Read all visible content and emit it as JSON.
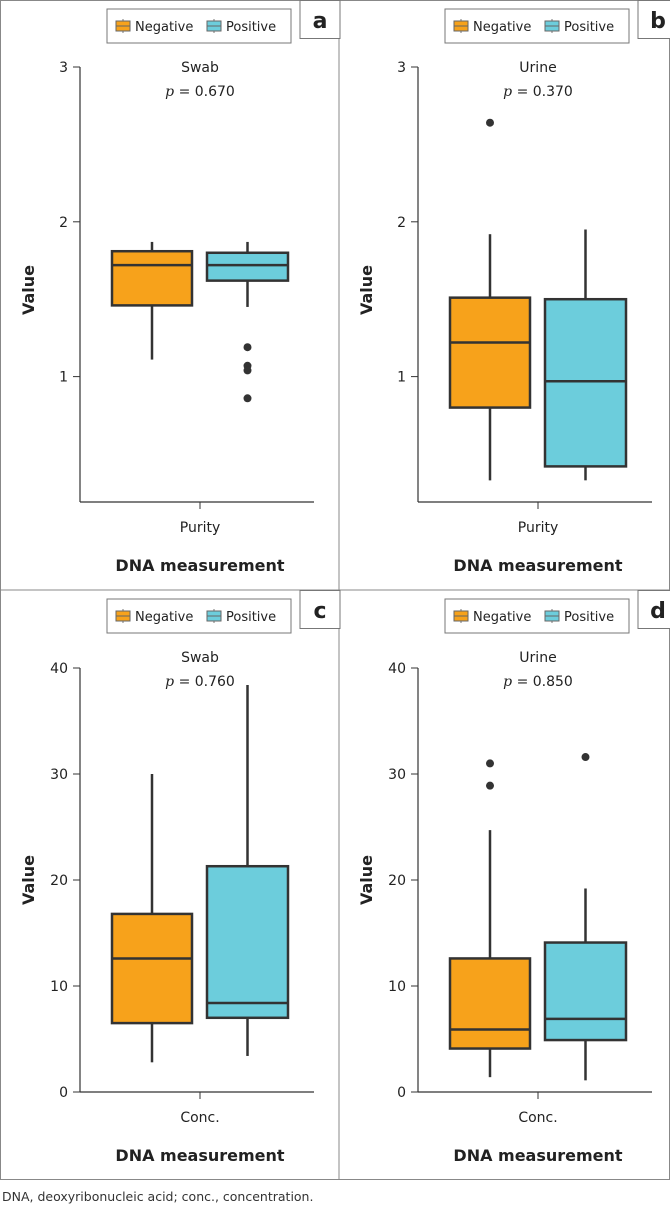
{
  "colors": {
    "negative": "#F7A21B",
    "positive": "#6CCDDC",
    "stroke": "#333333"
  },
  "legend": {
    "negative": "Negative",
    "positive": "Positive"
  },
  "caption": "DNA, deoxyribonucleic acid; conc., concentration.",
  "chart_data": [
    {
      "panel": "a",
      "type": "box",
      "title": "Swab",
      "p_label": "p",
      "p_value": "= 0.670",
      "ylabel": "Value",
      "xlabel": "DNA measurement",
      "category": "Purity",
      "yticks": [
        1,
        2,
        3
      ],
      "ylim": [
        0.19,
        3
      ],
      "series": [
        {
          "name": "Negative",
          "min": 1.11,
          "q1": 1.46,
          "median": 1.72,
          "q3": 1.81,
          "max": 1.87,
          "outliers": []
        },
        {
          "name": "Positive",
          "min": 1.45,
          "q1": 1.62,
          "median": 1.72,
          "q3": 1.8,
          "max": 1.87,
          "outliers": [
            1.19,
            1.07,
            1.04,
            0.86
          ]
        }
      ]
    },
    {
      "panel": "b",
      "type": "box",
      "title": "Urine",
      "p_label": "p",
      "p_value": "= 0.370",
      "ylabel": "Value",
      "xlabel": "DNA measurement",
      "category": "Purity",
      "yticks": [
        1,
        2,
        3
      ],
      "ylim": [
        0.19,
        3
      ],
      "series": [
        {
          "name": "Negative",
          "min": 0.33,
          "q1": 0.8,
          "median": 1.22,
          "q3": 1.51,
          "max": 1.92,
          "outliers": [
            2.64
          ]
        },
        {
          "name": "Positive",
          "min": 0.33,
          "q1": 0.42,
          "median": 0.97,
          "q3": 1.5,
          "max": 1.95,
          "outliers": []
        }
      ]
    },
    {
      "panel": "c",
      "type": "box",
      "title": "Swab",
      "p_label": "p",
      "p_value": "= 0.760",
      "ylabel": "Value",
      "xlabel": "DNA measurement",
      "category": "Conc.",
      "yticks": [
        0,
        10,
        20,
        30,
        40
      ],
      "ylim": [
        0,
        40
      ],
      "series": [
        {
          "name": "Negative",
          "min": 2.8,
          "q1": 6.5,
          "median": 12.6,
          "q3": 16.8,
          "max": 30.0,
          "outliers": []
        },
        {
          "name": "Positive",
          "min": 3.4,
          "q1": 7.0,
          "median": 8.4,
          "q3": 21.3,
          "max": 38.4,
          "outliers": []
        }
      ]
    },
    {
      "panel": "d",
      "type": "box",
      "title": "Urine",
      "p_label": "p",
      "p_value": "= 0.850",
      "ylabel": "Value",
      "xlabel": "DNA measurement",
      "category": "Conc.",
      "yticks": [
        0,
        10,
        20,
        30,
        40
      ],
      "ylim": [
        0,
        40
      ],
      "series": [
        {
          "name": "Negative",
          "min": 1.4,
          "q1": 4.1,
          "median": 5.9,
          "q3": 12.6,
          "max": 24.7,
          "outliers": [
            31.0,
            28.9
          ]
        },
        {
          "name": "Positive",
          "min": 1.1,
          "q1": 4.9,
          "median": 6.9,
          "q3": 14.1,
          "max": 19.2,
          "outliers": [
            31.6
          ]
        }
      ]
    }
  ]
}
